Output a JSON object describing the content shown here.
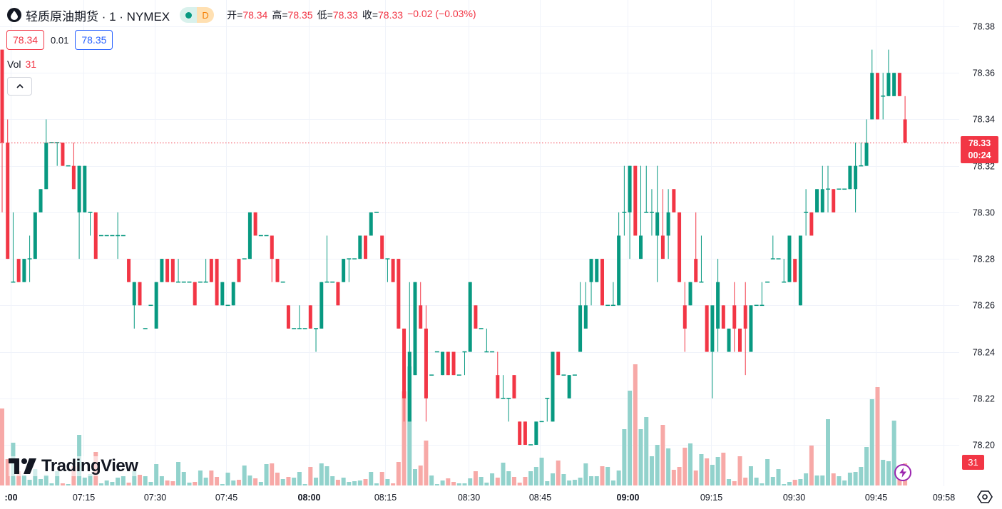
{
  "header": {
    "symbol_title": "轻质原油期货 · 1 · NYMEX",
    "symbol_icon": "oil-drop-icon",
    "badge_letter": "D",
    "ohlc": [
      {
        "key": "开=",
        "value": "78.34"
      },
      {
        "key": "高=",
        "value": "78.35"
      },
      {
        "key": "低=",
        "value": "78.33"
      },
      {
        "key": "收=",
        "value": "78.33"
      }
    ],
    "change": "−0.02 (−0.03%)"
  },
  "quote": {
    "bid": "78.34",
    "spread": "0.01",
    "ask": "78.35"
  },
  "volume_legend": {
    "label": "Vol",
    "value": "31"
  },
  "logo_text": "TradingView",
  "last_price_label": {
    "price": "78.33",
    "countdown": "00:24"
  },
  "last_volume_label": "31",
  "colors": {
    "up": "#089981",
    "down": "#f23645",
    "vol_up": "#92d2cc",
    "vol_down": "#f7a9a7",
    "grid": "#f0f3fa"
  },
  "chart_data": {
    "type": "candlestick",
    "title": "轻质原油期货 · 1 · NYMEX",
    "interval": "1 minute",
    "price_ticks": [
      "78.38",
      "78.36",
      "78.34",
      "78.32",
      "78.30",
      "78.28",
      "78.26",
      "78.24",
      "78.22",
      "78.20"
    ],
    "ylim": [
      78.187,
      78.391
    ],
    "last_price": 78.33,
    "time_ticks": [
      {
        "label": ":00",
        "bar": 2.6,
        "bold": true
      },
      {
        "label": "07:15",
        "bar": 15.8
      },
      {
        "label": "07:30",
        "bar": 28.7
      },
      {
        "label": "07:45",
        "bar": 41.7
      },
      {
        "label": "08:00",
        "bar": 56.7,
        "bold": true
      },
      {
        "label": "08:15",
        "bar": 70.6
      },
      {
        "label": "08:30",
        "bar": 85.7
      },
      {
        "label": "08:45",
        "bar": 98.7
      },
      {
        "label": "09:00",
        "bar": 114.6,
        "bold": true
      },
      {
        "label": "09:15",
        "bar": 129.8
      },
      {
        "label": "09:30",
        "bar": 144.8
      },
      {
        "label": "09:45",
        "bar": 159.7
      },
      {
        "label": "09:58",
        "bar": 172
      }
    ],
    "ohlc": [
      [
        78.37,
        78.37,
        78.3,
        78.33
      ],
      [
        78.33,
        78.34,
        78.28,
        78.28
      ],
      [
        78.27,
        78.3,
        78.27,
        78.27
      ],
      [
        78.28,
        78.28,
        78.27,
        78.27
      ],
      [
        78.27,
        78.28,
        78.27,
        78.28
      ],
      [
        78.28,
        78.29,
        78.27,
        78.28
      ],
      [
        78.28,
        78.3,
        78.28,
        78.3
      ],
      [
        78.3,
        78.31,
        78.3,
        78.31
      ],
      [
        78.31,
        78.34,
        78.31,
        78.33
      ],
      [
        78.33,
        78.33,
        78.33,
        78.33
      ],
      [
        78.33,
        78.33,
        78.32,
        78.33
      ],
      [
        78.33,
        78.33,
        78.32,
        78.32
      ],
      [
        78.32,
        78.32,
        78.32,
        78.32
      ],
      [
        78.32,
        78.33,
        78.31,
        78.31
      ],
      [
        78.3,
        78.32,
        78.28,
        78.32
      ],
      [
        78.3,
        78.32,
        78.3,
        78.32
      ],
      [
        78.3,
        78.3,
        78.29,
        78.3
      ],
      [
        78.3,
        78.3,
        78.28,
        78.28
      ],
      [
        78.29,
        78.29,
        78.29,
        78.29
      ],
      [
        78.29,
        78.29,
        78.29,
        78.29
      ],
      [
        78.29,
        78.29,
        78.29,
        78.29
      ],
      [
        78.29,
        78.3,
        78.28,
        78.29
      ],
      [
        78.29,
        78.29,
        78.29,
        78.29
      ],
      [
        78.28,
        78.28,
        78.27,
        78.27
      ],
      [
        78.26,
        78.27,
        78.25,
        78.27
      ],
      [
        78.27,
        78.27,
        78.26,
        78.26
      ],
      [
        78.25,
        78.25,
        78.25,
        78.25
      ],
      [
        78.26,
        78.26,
        78.26,
        78.26
      ],
      [
        78.25,
        78.27,
        78.25,
        78.27
      ],
      [
        78.27,
        78.28,
        78.27,
        78.28
      ],
      [
        78.28,
        78.28,
        78.27,
        78.27
      ],
      [
        78.28,
        78.28,
        78.27,
        78.27
      ],
      [
        78.27,
        78.28,
        78.27,
        78.27
      ],
      [
        78.27,
        78.27,
        78.27,
        78.27
      ],
      [
        78.27,
        78.27,
        78.27,
        78.27
      ],
      [
        78.27,
        78.27,
        78.26,
        78.26
      ],
      [
        78.27,
        78.27,
        78.27,
        78.27
      ],
      [
        78.27,
        78.28,
        78.27,
        78.27
      ],
      [
        78.28,
        78.28,
        78.27,
        78.27
      ],
      [
        78.28,
        78.28,
        78.26,
        78.26
      ],
      [
        78.26,
        78.27,
        78.26,
        78.27
      ],
      [
        78.26,
        78.26,
        78.26,
        78.26
      ],
      [
        78.26,
        78.27,
        78.26,
        78.27
      ],
      [
        78.28,
        78.28,
        78.27,
        78.27
      ],
      [
        78.28,
        78.28,
        78.28,
        78.28
      ],
      [
        78.28,
        78.3,
        78.28,
        78.3
      ],
      [
        78.3,
        78.3,
        78.29,
        78.29
      ],
      [
        78.29,
        78.29,
        78.29,
        78.29
      ],
      [
        78.29,
        78.29,
        78.29,
        78.29
      ],
      [
        78.29,
        78.29,
        78.27,
        78.28
      ],
      [
        78.28,
        78.28,
        78.27,
        78.27
      ],
      [
        78.27,
        78.27,
        78.27,
        78.27
      ],
      [
        78.26,
        78.26,
        78.25,
        78.25
      ],
      [
        78.25,
        78.25,
        78.25,
        78.25
      ],
      [
        78.25,
        78.26,
        78.25,
        78.25
      ],
      [
        78.25,
        78.25,
        78.25,
        78.25
      ],
      [
        78.26,
        78.26,
        78.25,
        78.25
      ],
      [
        78.25,
        78.25,
        78.24,
        78.25
      ],
      [
        78.25,
        78.27,
        78.25,
        78.27
      ],
      [
        78.27,
        78.29,
        78.27,
        78.27
      ],
      [
        78.27,
        78.27,
        78.27,
        78.27
      ],
      [
        78.27,
        78.27,
        78.26,
        78.26
      ],
      [
        78.27,
        78.28,
        78.27,
        78.28
      ],
      [
        78.28,
        78.28,
        78.27,
        78.28
      ],
      [
        78.28,
        78.28,
        78.28,
        78.28
      ],
      [
        78.28,
        78.29,
        78.28,
        78.29
      ],
      [
        78.29,
        78.29,
        78.28,
        78.28
      ],
      [
        78.29,
        78.3,
        78.29,
        78.3
      ],
      [
        78.3,
        78.3,
        78.3,
        78.3
      ],
      [
        78.29,
        78.29,
        78.28,
        78.28
      ],
      [
        78.28,
        78.28,
        78.27,
        78.28
      ],
      [
        78.28,
        78.28,
        78.27,
        78.27
      ],
      [
        78.28,
        78.28,
        78.25,
        78.25
      ],
      [
        78.25,
        78.25,
        78.21,
        78.22
      ],
      [
        78.21,
        78.27,
        78.21,
        78.24
      ],
      [
        78.23,
        78.27,
        78.23,
        78.27
      ],
      [
        78.26,
        78.27,
        78.25,
        78.25
      ],
      [
        78.25,
        78.26,
        78.21,
        78.22
      ],
      [
        78.23,
        78.23,
        78.23,
        78.23
      ],
      [
        78.24,
        78.24,
        78.24,
        78.24
      ],
      [
        78.23,
        78.24,
        78.23,
        78.24
      ],
      [
        78.24,
        78.24,
        78.23,
        78.23
      ],
      [
        78.24,
        78.24,
        78.23,
        78.23
      ],
      [
        78.23,
        78.23,
        78.23,
        78.23
      ],
      [
        78.24,
        78.24,
        78.23,
        78.24
      ],
      [
        78.24,
        78.27,
        78.24,
        78.27
      ],
      [
        78.26,
        78.26,
        78.25,
        78.25
      ],
      [
        78.25,
        78.25,
        78.25,
        78.25
      ],
      [
        78.24,
        78.25,
        78.24,
        78.24
      ],
      [
        78.24,
        78.24,
        78.24,
        78.24
      ],
      [
        78.23,
        78.24,
        78.22,
        78.22
      ],
      [
        78.22,
        78.23,
        78.22,
        78.22
      ],
      [
        78.22,
        78.22,
        78.21,
        78.22
      ],
      [
        78.23,
        78.23,
        78.22,
        78.22
      ],
      [
        78.21,
        78.21,
        78.2,
        78.2
      ],
      [
        78.21,
        78.21,
        78.2,
        78.2
      ],
      [
        78.2,
        78.2,
        78.2,
        78.2
      ],
      [
        78.2,
        78.21,
        78.2,
        78.21
      ],
      [
        78.21,
        78.21,
        78.21,
        78.21
      ],
      [
        78.22,
        78.22,
        78.21,
        78.22
      ],
      [
        78.21,
        78.24,
        78.21,
        78.24
      ],
      [
        78.24,
        78.24,
        78.23,
        78.23
      ],
      [
        78.23,
        78.23,
        78.23,
        78.23
      ],
      [
        78.22,
        78.23,
        78.22,
        78.23
      ],
      [
        78.23,
        78.23,
        78.23,
        78.23
      ],
      [
        78.24,
        78.27,
        78.24,
        78.26
      ],
      [
        78.25,
        78.27,
        78.25,
        78.26
      ],
      [
        78.27,
        78.28,
        78.26,
        78.28
      ],
      [
        78.27,
        78.28,
        78.27,
        78.28
      ],
      [
        78.28,
        78.28,
        78.26,
        78.26
      ],
      [
        78.26,
        78.26,
        78.26,
        78.26
      ],
      [
        78.26,
        78.27,
        78.26,
        78.26
      ],
      [
        78.26,
        78.3,
        78.26,
        78.29
      ],
      [
        78.3,
        78.32,
        78.29,
        78.3
      ],
      [
        78.3,
        78.32,
        78.28,
        78.32
      ],
      [
        78.32,
        78.32,
        78.29,
        78.29
      ],
      [
        78.28,
        78.32,
        78.28,
        78.29
      ],
      [
        78.3,
        78.32,
        78.3,
        78.3
      ],
      [
        78.3,
        78.31,
        78.29,
        78.3
      ],
      [
        78.29,
        78.32,
        78.27,
        78.3
      ],
      [
        78.29,
        78.31,
        78.28,
        78.28
      ],
      [
        78.29,
        78.31,
        78.28,
        78.3
      ],
      [
        78.31,
        78.31,
        78.3,
        78.3
      ],
      [
        78.3,
        78.3,
        78.27,
        78.27
      ],
      [
        78.26,
        78.27,
        78.24,
        78.25
      ],
      [
        78.26,
        78.27,
        78.26,
        78.27
      ],
      [
        78.28,
        78.3,
        78.27,
        78.27
      ],
      [
        78.27,
        78.29,
        78.27,
        78.27
      ],
      [
        78.26,
        78.26,
        78.24,
        78.24
      ],
      [
        78.24,
        78.26,
        78.22,
        78.26
      ],
      [
        78.25,
        78.28,
        78.24,
        78.27
      ],
      [
        78.26,
        78.26,
        78.25,
        78.25
      ],
      [
        78.24,
        78.25,
        78.24,
        78.25
      ],
      [
        78.26,
        78.27,
        78.24,
        78.25
      ],
      [
        78.25,
        78.25,
        78.24,
        78.24
      ],
      [
        78.26,
        78.27,
        78.23,
        78.25
      ],
      [
        78.24,
        78.26,
        78.24,
        78.26
      ],
      [
        78.26,
        78.26,
        78.26,
        78.26
      ],
      [
        78.26,
        78.27,
        78.26,
        78.26
      ],
      [
        78.27,
        78.27,
        78.27,
        78.27
      ],
      [
        78.28,
        78.29,
        78.28,
        78.28
      ],
      [
        78.28,
        78.28,
        78.28,
        78.28
      ],
      [
        78.27,
        78.28,
        78.27,
        78.27
      ],
      [
        78.27,
        78.29,
        78.27,
        78.29
      ],
      [
        78.28,
        78.28,
        78.27,
        78.27
      ],
      [
        78.26,
        78.29,
        78.26,
        78.29
      ],
      [
        78.3,
        78.31,
        78.29,
        78.3
      ],
      [
        78.3,
        78.3,
        78.29,
        78.29
      ],
      [
        78.3,
        78.31,
        78.3,
        78.31
      ],
      [
        78.3,
        78.32,
        78.3,
        78.31
      ],
      [
        78.31,
        78.32,
        78.3,
        78.31
      ],
      [
        78.31,
        78.31,
        78.3,
        78.3
      ],
      [
        78.31,
        78.31,
        78.31,
        78.31
      ],
      [
        78.31,
        78.31,
        78.31,
        78.31
      ],
      [
        78.31,
        78.32,
        78.31,
        78.32
      ],
      [
        78.31,
        78.33,
        78.3,
        78.32
      ],
      [
        78.32,
        78.33,
        78.32,
        78.32
      ],
      [
        78.32,
        78.34,
        78.32,
        78.33
      ],
      [
        78.34,
        78.37,
        78.34,
        78.36
      ],
      [
        78.36,
        78.36,
        78.34,
        78.34
      ],
      [
        78.35,
        78.36,
        78.34,
        78.35
      ],
      [
        78.35,
        78.37,
        78.35,
        78.36
      ],
      [
        78.35,
        78.36,
        78.35,
        78.36
      ],
      [
        78.36,
        78.36,
        78.35,
        78.35
      ],
      [
        78.34,
        78.35,
        78.33,
        78.33
      ]
    ],
    "volume": [
      108,
      37,
      60,
      20,
      15,
      8,
      23,
      9,
      15,
      3,
      20,
      3,
      2,
      27,
      71,
      11,
      16,
      47,
      3,
      7,
      5,
      11,
      13,
      4,
      20,
      15,
      13,
      5,
      30,
      13,
      7,
      6,
      33,
      19,
      4,
      5,
      21,
      11,
      21,
      12,
      2,
      18,
      7,
      8,
      28,
      14,
      10,
      5,
      30,
      31,
      18,
      9,
      12,
      11,
      19,
      2,
      26,
      11,
      31,
      27,
      13,
      8,
      11,
      5,
      6,
      7,
      9,
      19,
      3,
      19,
      9,
      3,
      33,
      132,
      167,
      23,
      28,
      63,
      14,
      2,
      7,
      10,
      5,
      3,
      3,
      10,
      20,
      12,
      4,
      17,
      11,
      32,
      20,
      12,
      4,
      12,
      20,
      26,
      39,
      6,
      17,
      35,
      16,
      7,
      8,
      11,
      31,
      13,
      13,
      27,
      26,
      7,
      21,
      79,
      133,
      170,
      79,
      96,
      41,
      57,
      85,
      52,
      22,
      26,
      53,
      59,
      21,
      44,
      38,
      29,
      40,
      46,
      9,
      6,
      41,
      11,
      27,
      11,
      3,
      37,
      12,
      23,
      2,
      5,
      8,
      9,
      17,
      56,
      14,
      14,
      93,
      17,
      13,
      7,
      18,
      19,
      26,
      54,
      121,
      138,
      36,
      34,
      91,
      22,
      31
    ]
  }
}
